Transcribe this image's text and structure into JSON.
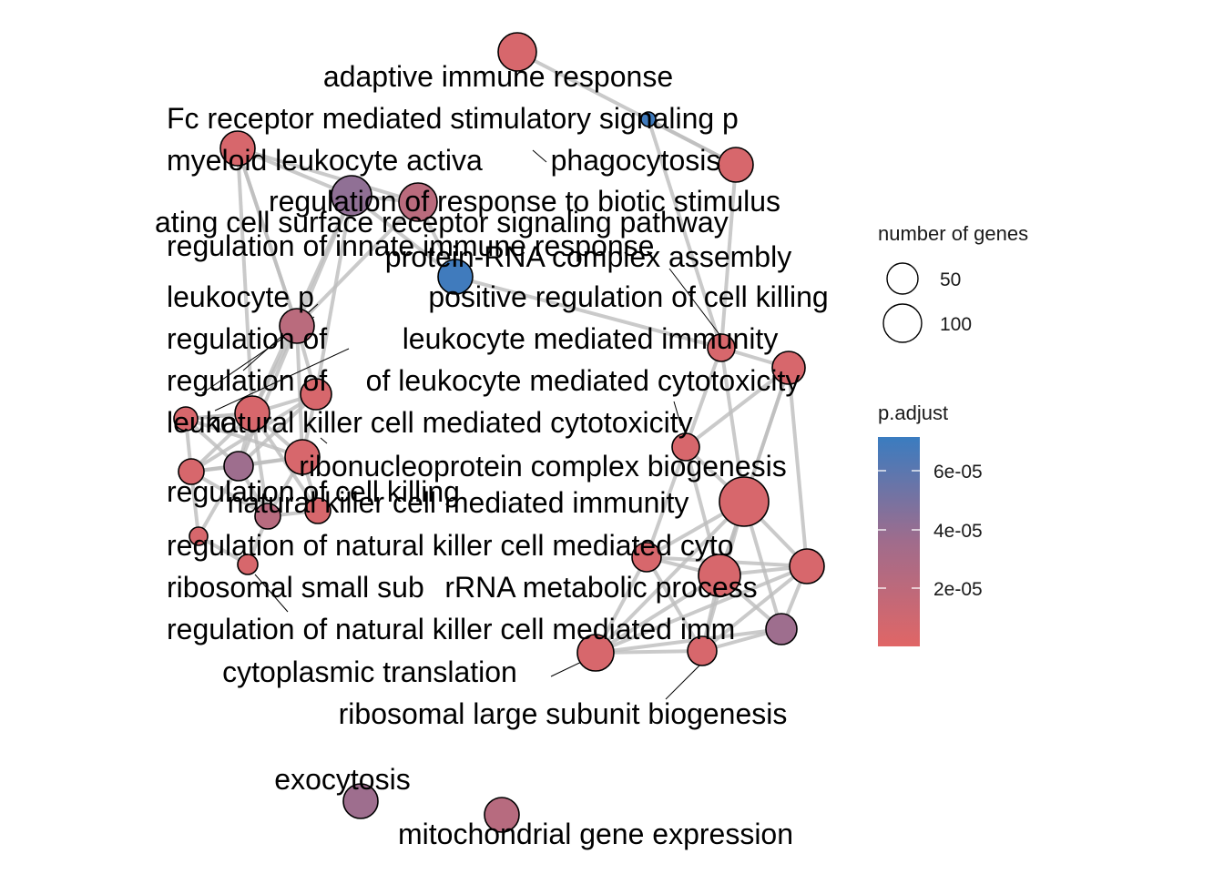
{
  "chart_data": {
    "type": "network",
    "title": "",
    "legend": {
      "size_title": "number of genes",
      "size_entries": [
        {
          "label": "50",
          "value": 50
        },
        {
          "label": "100",
          "value": 100
        }
      ],
      "color_title": "p.adjust",
      "color_ticks": [
        {
          "label": "6e-05",
          "value": 6e-05
        },
        {
          "label": "4e-05",
          "value": 4e-05
        },
        {
          "label": "2e-05",
          "value": 2e-05
        }
      ],
      "color_range": [
        0,
        7e-05
      ],
      "color_low": "#E06666",
      "color_mid": "#9E6E8E",
      "color_high": "#3A7CC0"
    },
    "nodes": [
      {
        "id": "adaptive immune response",
        "size": 80,
        "p_adjust": 5e-06
      },
      {
        "id": "Fc receptor mediated stimulatory signaling pathway",
        "size": 15,
        "p_adjust": 6.8e-05
      },
      {
        "id": "myeloid leukocyte activation",
        "size": 70,
        "p_adjust": 5e-06
      },
      {
        "id": "phagocytosis",
        "size": 70,
        "p_adjust": 5e-06
      },
      {
        "id": "regulation of response to biotic stimulus",
        "size": 80,
        "p_adjust": 2e-05
      },
      {
        "id": "immune response-activating cell surface receptor signaling pathway",
        "size": 90,
        "p_adjust": 4e-05
      },
      {
        "id": "regulation of innate immune response",
        "size": 75,
        "p_adjust": 2e-05
      },
      {
        "id": "protein-RNA complex assembly",
        "size": 75,
        "p_adjust": 6.8e-05
      },
      {
        "id": "leukocyte proliferation",
        "size": 70,
        "p_adjust": 5e-06
      },
      {
        "id": "positive regulation of cell killing",
        "size": 40,
        "p_adjust": 5e-06
      },
      {
        "id": "regulation of leukocyte mediated immunity",
        "size": 70,
        "p_adjust": 5e-06
      },
      {
        "id": "regulation of leukocyte mediated cytotoxicity",
        "size": 50,
        "p_adjust": 5e-06
      },
      {
        "id": "leukocyte mediated cytotoxicity",
        "size": 60,
        "p_adjust": 3.5e-05
      },
      {
        "id": "natural killer cell mediated cytotoxicity",
        "size": 50,
        "p_adjust": 5e-06
      },
      {
        "id": "ribonucleoprotein complex biogenesis",
        "size": 120,
        "p_adjust": 5e-06
      },
      {
        "id": "regulation of cell killing",
        "size": 60,
        "p_adjust": 5e-06
      },
      {
        "id": "natural killer cell mediated immunity",
        "size": 55,
        "p_adjust": 5e-06
      },
      {
        "id": "regulation of natural killer cell mediated cytotoxicity",
        "size": 40,
        "p_adjust": 5e-06
      },
      {
        "id": "ribosomal small subunit biogenesis",
        "size": 55,
        "p_adjust": 5e-06
      },
      {
        "id": "rRNA metabolic process",
        "size": 100,
        "p_adjust": 5e-06
      },
      {
        "id": "regulation of natural killer cell mediated immunity",
        "size": 40,
        "p_adjust": 5e-06
      },
      {
        "id": "cytoplasmic translation",
        "size": 85,
        "p_adjust": 5e-06
      },
      {
        "id": "ribosomal large subunit biogenesis",
        "size": 55,
        "p_adjust": 5e-06
      },
      {
        "id": "exocytosis",
        "size": 80,
        "p_adjust": 3.5e-05
      },
      {
        "id": "mitochondrial gene expression",
        "size": 80,
        "p_adjust": 2.2e-05
      }
    ]
  },
  "labels": [
    "adaptive immune response",
    "Fc receptor mediated stimulatory signaling p",
    "myeloid leukocyte activa",
    "phagocytosis",
    "regulation of response to biotic stimulus",
    "ating cell surface receptor signaling pathway",
    "regulation of innate immune response",
    "protein-RNA complex assembly",
    "leukocyte p",
    "positive regulation of cell killing",
    "regulation of",
    "leukocyte mediated immunity",
    "regulation of",
    "of leukocyte mediated cytotoxicity",
    "leuko",
    "natural killer cell mediated cytotoxicity",
    "ribonucleoprotein complex biogenesis",
    "regulation of cell killing",
    "natural killer cell mediated immunity",
    "regulation of natural killer cell mediated cyto",
    "ribosomal small sub",
    "rRNA metabolic process",
    "regulation of natural killer cell mediated imm",
    "cytoplasmic translation",
    "ribosomal large subunit biogenesis",
    "exocytosis",
    "mitochondrial gene expression"
  ]
}
